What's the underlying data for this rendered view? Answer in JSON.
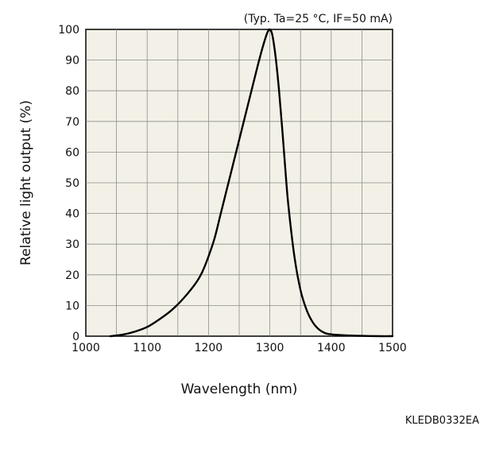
{
  "chart_data": {
    "type": "line",
    "condition_note": "(Typ. Ta=25 °C, IF=50 mA)",
    "xlabel": "Wavelength (nm)",
    "ylabel": "Relative light output (%)",
    "xlim": [
      1000,
      1500
    ],
    "ylim": [
      0,
      100
    ],
    "x_ticks": [
      "1000",
      "1100",
      "1200",
      "1300",
      "1400",
      "1500"
    ],
    "y_ticks": [
      "0",
      "10",
      "20",
      "30",
      "40",
      "50",
      "60",
      "70",
      "80",
      "90",
      "100"
    ],
    "grid": true,
    "legend": "none",
    "series": [
      {
        "color": "#000000",
        "x": [
          1040,
          1060,
          1080,
          1100,
          1120,
          1140,
          1160,
          1180,
          1190,
          1200,
          1210,
          1220,
          1230,
          1240,
          1250,
          1260,
          1270,
          1280,
          1288,
          1295,
          1298,
          1300,
          1303,
          1306,
          1310,
          1315,
          1320,
          1325,
          1330,
          1340,
          1350,
          1360,
          1370,
          1380,
          1390,
          1400,
          1420,
          1450,
          1480,
          1500
        ],
        "y": [
          0,
          0.5,
          1.5,
          3,
          5.5,
          8.5,
          12.5,
          17.5,
          21,
          26,
          32,
          40,
          48,
          56,
          64,
          72,
          80,
          88,
          94,
          98.5,
          99.7,
          100,
          99,
          96,
          90,
          80,
          68,
          55,
          43,
          26,
          15,
          8.5,
          4.5,
          2.2,
          1,
          0.6,
          0.3,
          0.1,
          0,
          0
        ]
      }
    ],
    "code": "KLEDB0332EA"
  }
}
